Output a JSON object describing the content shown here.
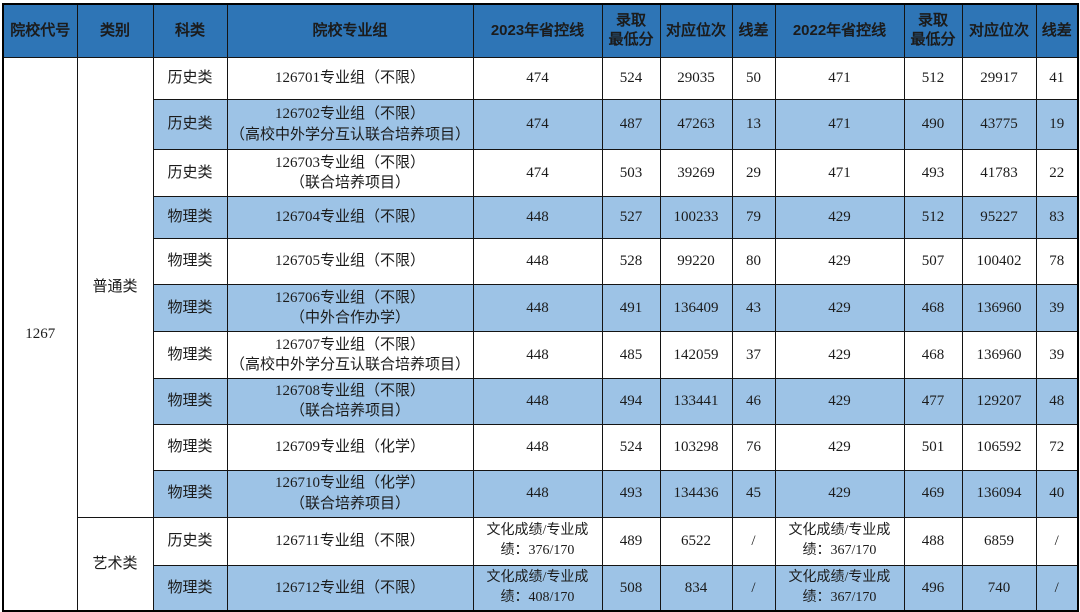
{
  "table": {
    "headers": [
      "院校代号",
      "类别",
      "科类",
      "院校专业组",
      "2023年省控线",
      "录取\n最低分",
      "对应位次",
      "线差",
      "2022年省控线",
      "录取\n最低分",
      "对应位次",
      "线差"
    ],
    "college_code": "1267",
    "categories": [
      {
        "label": "普通类",
        "rowspan": 10
      },
      {
        "label": "艺术类",
        "rowspan": 2
      }
    ],
    "rows": [
      {
        "subject": "历史类",
        "group": "126701专业组（不限）",
        "ctrl_2023": "474",
        "min_2023": "524",
        "rank_2023": "29035",
        "diff_2023": "50",
        "ctrl_2022": "471",
        "min_2022": "512",
        "rank_2022": "29917",
        "diff_2022": "41"
      },
      {
        "subject": "历史类",
        "group": "126702专业组（不限）\n（高校中外学分互认联合培养项目）",
        "ctrl_2023": "474",
        "min_2023": "487",
        "rank_2023": "47263",
        "diff_2023": "13",
        "ctrl_2022": "471",
        "min_2022": "490",
        "rank_2022": "43775",
        "diff_2022": "19"
      },
      {
        "subject": "历史类",
        "group": "126703专业组（不限）\n（联合培养项目）",
        "ctrl_2023": "474",
        "min_2023": "503",
        "rank_2023": "39269",
        "diff_2023": "29",
        "ctrl_2022": "471",
        "min_2022": "493",
        "rank_2022": "41783",
        "diff_2022": "22"
      },
      {
        "subject": "物理类",
        "group": "126704专业组（不限）",
        "ctrl_2023": "448",
        "min_2023": "527",
        "rank_2023": "100233",
        "diff_2023": "79",
        "ctrl_2022": "429",
        "min_2022": "512",
        "rank_2022": "95227",
        "diff_2022": "83"
      },
      {
        "subject": "物理类",
        "group": "126705专业组（不限）",
        "ctrl_2023": "448",
        "min_2023": "528",
        "rank_2023": "99220",
        "diff_2023": "80",
        "ctrl_2022": "429",
        "min_2022": "507",
        "rank_2022": "100402",
        "diff_2022": "78"
      },
      {
        "subject": "物理类",
        "group": "126706专业组（不限）\n（中外合作办学）",
        "ctrl_2023": "448",
        "min_2023": "491",
        "rank_2023": "136409",
        "diff_2023": "43",
        "ctrl_2022": "429",
        "min_2022": "468",
        "rank_2022": "136960",
        "diff_2022": "39"
      },
      {
        "subject": "物理类",
        "group": "126707专业组（不限）\n（高校中外学分互认联合培养项目）",
        "ctrl_2023": "448",
        "min_2023": "485",
        "rank_2023": "142059",
        "diff_2023": "37",
        "ctrl_2022": "429",
        "min_2022": "468",
        "rank_2022": "136960",
        "diff_2022": "39"
      },
      {
        "subject": "物理类",
        "group": "126708专业组（不限）\n（联合培养项目）",
        "ctrl_2023": "448",
        "min_2023": "494",
        "rank_2023": "133441",
        "diff_2023": "46",
        "ctrl_2022": "429",
        "min_2022": "477",
        "rank_2022": "129207",
        "diff_2022": "48"
      },
      {
        "subject": "物理类",
        "group": "126709专业组（化学）",
        "ctrl_2023": "448",
        "min_2023": "524",
        "rank_2023": "103298",
        "diff_2023": "76",
        "ctrl_2022": "429",
        "min_2022": "501",
        "rank_2022": "106592",
        "diff_2022": "72"
      },
      {
        "subject": "物理类",
        "group": "126710专业组（化学）\n（联合培养项目）",
        "ctrl_2023": "448",
        "min_2023": "493",
        "rank_2023": "134436",
        "diff_2023": "45",
        "ctrl_2022": "429",
        "min_2022": "469",
        "rank_2022": "136094",
        "diff_2022": "40"
      },
      {
        "subject": "历史类",
        "group": "126711专业组（不限）",
        "ctrl_2023": "文化成绩/专业成绩：376/170",
        "min_2023": "489",
        "rank_2023": "6522",
        "diff_2023": "/",
        "ctrl_2022": "文化成绩/专业成绩：367/170",
        "min_2022": "488",
        "rank_2022": "6859",
        "diff_2022": "/"
      },
      {
        "subject": "物理类",
        "group": "126712专业组（不限）",
        "ctrl_2023": "文化成绩/专业成绩：408/170",
        "min_2023": "508",
        "rank_2023": "834",
        "diff_2023": "/",
        "ctrl_2022": "文化成绩/专业成绩：367/170",
        "min_2022": "496",
        "rank_2022": "740",
        "diff_2022": "/"
      }
    ]
  },
  "colors": {
    "header_bg": "#2e75b6",
    "header_text": "#ffffff",
    "stripe_bg": "#9dc3e6",
    "border": "#141414",
    "body_text": "#1b1b1b"
  }
}
